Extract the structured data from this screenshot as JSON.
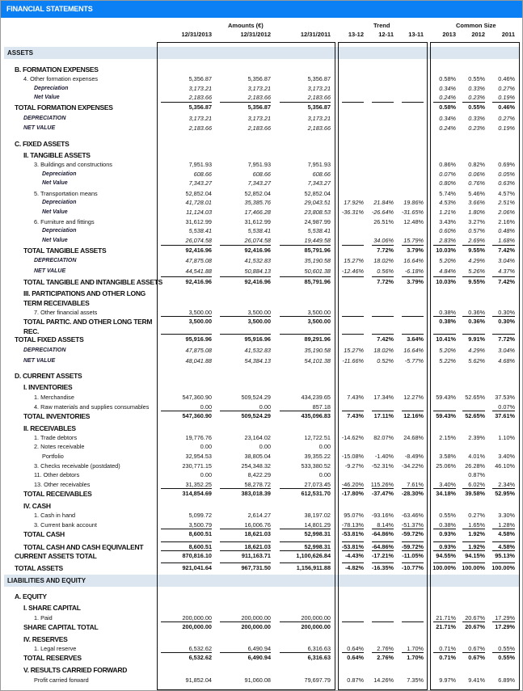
{
  "title": "FINANCIAL STATEMENTS",
  "headers": {
    "amounts": "Amounts (€)",
    "trend": "Trend",
    "common_size": "Common Size",
    "amount_cols": [
      "12/31/2013",
      "12/31/2012",
      "12/31/2011"
    ],
    "trend_cols": [
      "13-12",
      "12-11",
      "13-11"
    ],
    "cs_cols": [
      "2013",
      "2012",
      "2011"
    ]
  },
  "rows": [
    {
      "kind": "band",
      "label": "ASSETS"
    },
    {
      "kind": "section",
      "level": 1,
      "label": "B. FORMATION EXPENSES"
    },
    {
      "kind": "item",
      "level": 2,
      "label": "4. Other formation expenses",
      "a": [
        "5,356.87",
        "5,356.87",
        "5,356.87"
      ],
      "t": [
        "",
        "",
        ""
      ],
      "c": [
        "0.58%",
        "0.55%",
        "0.46%"
      ]
    },
    {
      "kind": "sub",
      "level": 3,
      "label": "Depreciation",
      "a": [
        "3,173.21",
        "3,173.21",
        "3,173.21"
      ],
      "t": [
        "",
        "",
        ""
      ],
      "c": [
        "0.34%",
        "0.33%",
        "0.27%"
      ]
    },
    {
      "kind": "sub",
      "level": 3,
      "label": "Net Value",
      "a": [
        "2,183.66",
        "2,183.66",
        "2,183.66"
      ],
      "t": [
        "",
        "",
        ""
      ],
      "c": [
        "0.24%",
        "0.23%",
        "0.19%"
      ]
    },
    {
      "kind": "total",
      "level": 1,
      "rule": true,
      "label": "TOTAL FORMATION EXPENSES",
      "a": [
        "5,356.87",
        "5,356.87",
        "5,356.87"
      ],
      "t": [
        "",
        "",
        ""
      ],
      "c": [
        "0.58%",
        "0.55%",
        "0.46%"
      ]
    },
    {
      "kind": "totsub",
      "level": 2,
      "label": "DEPRECIATION",
      "a": [
        "3,173.21",
        "3,173.21",
        "3,173.21"
      ],
      "t": [
        "",
        "",
        ""
      ],
      "c": [
        "0.34%",
        "0.33%",
        "0.27%"
      ]
    },
    {
      "kind": "totsub",
      "level": 2,
      "label": "NET VALUE",
      "a": [
        "2,183.66",
        "2,183.66",
        "2,183.66"
      ],
      "t": [
        "",
        "",
        ""
      ],
      "c": [
        "0.24%",
        "0.23%",
        "0.19%"
      ]
    },
    {
      "kind": "section",
      "level": 1,
      "label": "C. FIXED ASSETS"
    },
    {
      "kind": "section",
      "level": 2,
      "label": "II. TANGIBLE ASSETS"
    },
    {
      "kind": "item",
      "level": 3,
      "label": "3. Buildings and constructions",
      "a": [
        "7,951.93",
        "7,951.93",
        "7,951.93"
      ],
      "t": [
        "",
        "",
        ""
      ],
      "c": [
        "0.86%",
        "0.82%",
        "0.69%"
      ]
    },
    {
      "kind": "sub",
      "level": 4,
      "label": "Depreciation",
      "a": [
        "608.66",
        "608.66",
        "608.66"
      ],
      "t": [
        "",
        "",
        ""
      ],
      "c": [
        "0.07%",
        "0.06%",
        "0.05%"
      ]
    },
    {
      "kind": "sub",
      "level": 4,
      "label": "Net Value",
      "a": [
        "7,343.27",
        "7,343.27",
        "7,343.27"
      ],
      "t": [
        "",
        "",
        ""
      ],
      "c": [
        "0.80%",
        "0.76%",
        "0.63%"
      ]
    },
    {
      "kind": "item",
      "level": 3,
      "label": "5. Transportation means",
      "a": [
        "52,852.04",
        "52,852.04",
        "52,852.04"
      ],
      "t": [
        "",
        "",
        ""
      ],
      "c": [
        "5.74%",
        "5.46%",
        "4.57%"
      ]
    },
    {
      "kind": "sub",
      "level": 4,
      "label": "Depreciation",
      "a": [
        "41,728.01",
        "35,385.76",
        "29,043.51"
      ],
      "t": [
        "17.92%",
        "21.84%",
        "19.86%"
      ],
      "c": [
        "4.53%",
        "3.66%",
        "2.51%"
      ]
    },
    {
      "kind": "sub",
      "level": 4,
      "label": "Net Value",
      "a": [
        "11,124.03",
        "17,466.28",
        "23,808.53"
      ],
      "t": [
        "-36.31%",
        "-26.64%",
        "-31.65%"
      ],
      "c": [
        "1.21%",
        "1.80%",
        "2.06%"
      ]
    },
    {
      "kind": "item",
      "level": 3,
      "label": "6. Furniture and fittings",
      "a": [
        "31,612.99",
        "31,612.99",
        "24,987.99"
      ],
      "t": [
        "",
        "26.51%",
        "12.48%"
      ],
      "c": [
        "3.43%",
        "3.27%",
        "2.16%"
      ]
    },
    {
      "kind": "sub",
      "level": 4,
      "label": "Depreciation",
      "a": [
        "5,538.41",
        "5,538.41",
        "5,538.41"
      ],
      "t": [
        "",
        "",
        ""
      ],
      "c": [
        "0.60%",
        "0.57%",
        "0.48%"
      ]
    },
    {
      "kind": "sub",
      "level": 4,
      "label": "Net Value",
      "a": [
        "26,074.58",
        "26,074.58",
        "19,449.58"
      ],
      "t": [
        "",
        "34.06%",
        "15.79%"
      ],
      "c": [
        "2.83%",
        "2.69%",
        "1.68%"
      ]
    },
    {
      "kind": "total",
      "level": 2,
      "rule": true,
      "label": "TOTAL TANGIBLE ASSETS",
      "a": [
        "92,416.96",
        "92,416.96",
        "85,791.96"
      ],
      "t": [
        "",
        "7.72%",
        "3.79%"
      ],
      "c": [
        "10.03%",
        "9.55%",
        "7.42%"
      ]
    },
    {
      "kind": "totsub",
      "level": 3,
      "label": "DEPRECIATION",
      "a": [
        "47,875.08",
        "41,532.83",
        "35,190.58"
      ],
      "t": [
        "15.27%",
        "18.02%",
        "16.64%"
      ],
      "c": [
        "5.20%",
        "4.29%",
        "3.04%"
      ]
    },
    {
      "kind": "totsub",
      "level": 3,
      "label": "NET VALUE",
      "a": [
        "44,541.88",
        "50,884.13",
        "50,601.38"
      ],
      "t": [
        "-12.46%",
        "0.56%",
        "-6.18%"
      ],
      "c": [
        "4.84%",
        "5.26%",
        "4.37%"
      ]
    },
    {
      "kind": "total",
      "level": 2,
      "rule": true,
      "label": "TOTAL TANGIBLE AND INTANGIBLE ASSETS",
      "a": [
        "92,416.96",
        "92,416.96",
        "85,791.96"
      ],
      "t": [
        "",
        "7.72%",
        "3.79%"
      ],
      "c": [
        "10.03%",
        "9.55%",
        "7.42%"
      ]
    },
    {
      "kind": "section",
      "level": 2,
      "label": "III. PARTICIPATIONS AND OTHER LONG",
      "label2": "TERM RECEIVABLES"
    },
    {
      "kind": "item",
      "level": 3,
      "label": "7. Other financial assets",
      "a": [
        "3,500.00",
        "3,500.00",
        "3,500.00"
      ],
      "t": [
        "",
        "",
        ""
      ],
      "c": [
        "0.38%",
        "0.36%",
        "0.30%"
      ]
    },
    {
      "kind": "total",
      "level": 2,
      "rule": true,
      "label": "TOTAL PARTIC. AND OTHER LONG TERM",
      "label2": "REC.",
      "a": [
        "3,500.00",
        "3,500.00",
        "3,500.00"
      ],
      "t": [
        "",
        "",
        ""
      ],
      "c": [
        "0.38%",
        "0.36%",
        "0.30%"
      ]
    },
    {
      "kind": "total",
      "level": 1,
      "rule": true,
      "label": "TOTAL FIXED ASSETS",
      "a": [
        "95,916.96",
        "95,916.96",
        "89,291.96"
      ],
      "t": [
        "",
        "7.42%",
        "3.64%"
      ],
      "c": [
        "10.41%",
        "9.91%",
        "7.72%"
      ]
    },
    {
      "kind": "totsub",
      "level": 2,
      "label": "DEPRECIATION",
      "a": [
        "47,875.08",
        "41,532.83",
        "35,190.58"
      ],
      "t": [
        "15.27%",
        "18.02%",
        "16.64%"
      ],
      "c": [
        "5.20%",
        "4.29%",
        "3.04%"
      ]
    },
    {
      "kind": "totsub",
      "level": 2,
      "label": "NET VALUE",
      "a": [
        "48,041.88",
        "54,384.13",
        "54,101.38"
      ],
      "t": [
        "-11.66%",
        "0.52%",
        "-5.77%"
      ],
      "c": [
        "5.22%",
        "5.62%",
        "4.68%"
      ]
    },
    {
      "kind": "section",
      "level": 1,
      "label": "D. CURRENT ASSETS"
    },
    {
      "kind": "section",
      "level": 2,
      "label": "I. INVENTORIES"
    },
    {
      "kind": "item",
      "level": 3,
      "label": "1. Merchandise",
      "a": [
        "547,360.90",
        "509,524.29",
        "434,239.65"
      ],
      "t": [
        "7.43%",
        "17.34%",
        "12.27%"
      ],
      "c": [
        "59.43%",
        "52.65%",
        "37.53%"
      ]
    },
    {
      "kind": "item",
      "level": 3,
      "label": "4. Raw materials and supplies consumables",
      "a": [
        "0.00",
        "0.00",
        "857.18"
      ],
      "t": [
        "",
        "",
        ""
      ],
      "c": [
        "",
        "",
        "0.07%"
      ]
    },
    {
      "kind": "total",
      "level": 2,
      "rule": true,
      "label": "TOTAL INVENTORIES",
      "a": [
        "547,360.90",
        "509,524.29",
        "435,096.83"
      ],
      "t": [
        "7.43%",
        "17.11%",
        "12.16%"
      ],
      "c": [
        "59.43%",
        "52.65%",
        "37.61%"
      ]
    },
    {
      "kind": "section",
      "level": 2,
      "label": "II. RECEIVABLES"
    },
    {
      "kind": "item",
      "level": 3,
      "label": "1. Trade debtors",
      "a": [
        "19,776.76",
        "23,164.02",
        "12,722.51"
      ],
      "t": [
        "-14.62%",
        "82.07%",
        "24.68%"
      ],
      "c": [
        "2.15%",
        "2.39%",
        "1.10%"
      ]
    },
    {
      "kind": "item",
      "level": 3,
      "label": "2. Notes receivable",
      "a": [
        "0.00",
        "0.00",
        "0.00"
      ],
      "t": [
        "",
        "",
        ""
      ],
      "c": [
        "",
        "",
        ""
      ]
    },
    {
      "kind": "item",
      "level": 4,
      "label": "Portfolio",
      "a": [
        "32,954.53",
        "38,805.04",
        "39,355.22"
      ],
      "t": [
        "-15.08%",
        "-1.40%",
        "-8.49%"
      ],
      "c": [
        "3.58%",
        "4.01%",
        "3.40%"
      ]
    },
    {
      "kind": "item",
      "level": 3,
      "label": "3. Checks receivable (postdated)",
      "a": [
        "230,771.15",
        "254,348.32",
        "533,380.52"
      ],
      "t": [
        "-9.27%",
        "-52.31%",
        "-34.22%"
      ],
      "c": [
        "25.06%",
        "26.28%",
        "46.10%"
      ]
    },
    {
      "kind": "item",
      "level": 3,
      "label": "11. Other debtors",
      "a": [
        "0.00",
        "8,422.29",
        "0.00"
      ],
      "t": [
        "",
        "",
        ""
      ],
      "c": [
        "",
        "0.87%",
        ""
      ]
    },
    {
      "kind": "item",
      "level": 3,
      "label": "13. Other receivables",
      "a": [
        "31,352.25",
        "58,278.72",
        "27,073.45"
      ],
      "t": [
        "-46.20%",
        "115.26%",
        "7.61%"
      ],
      "c": [
        "3.40%",
        "6.02%",
        "2.34%"
      ]
    },
    {
      "kind": "total",
      "level": 2,
      "rule": true,
      "label": "TOTAL RECEIVABLES",
      "a": [
        "314,854.69",
        "383,018.39",
        "612,531.70"
      ],
      "t": [
        "-17.80%",
        "-37.47%",
        "-28.30%"
      ],
      "c": [
        "34.18%",
        "39.58%",
        "52.95%"
      ]
    },
    {
      "kind": "section",
      "level": 2,
      "label": "IV. CASH"
    },
    {
      "kind": "item",
      "level": 3,
      "label": "1. Cash in hand",
      "a": [
        "5,099.72",
        "2,614.27",
        "38,197.02"
      ],
      "t": [
        "95.07%",
        "-93.16%",
        "-63.46%"
      ],
      "c": [
        "0.55%",
        "0.27%",
        "3.30%"
      ]
    },
    {
      "kind": "item",
      "level": 3,
      "label": "3. Current bank account",
      "a": [
        "3,500.79",
        "16,006.76",
        "14,801.29"
      ],
      "t": [
        "-78.13%",
        "8.14%",
        "-51.37%"
      ],
      "c": [
        "0.38%",
        "1.65%",
        "1.28%"
      ]
    },
    {
      "kind": "total",
      "level": 2,
      "rule": true,
      "label": "TOTAL CASH",
      "a": [
        "8,600.51",
        "18,621.03",
        "52,998.31"
      ],
      "t": [
        "-53.81%",
        "-64.86%",
        "-59.72%"
      ],
      "c": [
        "0.93%",
        "1.92%",
        "4.58%"
      ]
    },
    {
      "kind": "total",
      "level": 2,
      "rule": true,
      "label": "TOTAL CASH AND CASH EQUIVALENT",
      "a": [
        "8,600.51",
        "18,621.03",
        "52,998.31"
      ],
      "t": [
        "-53.81%",
        "-64.86%",
        "-59.72%"
      ],
      "c": [
        "0.93%",
        "1.92%",
        "4.58%"
      ]
    },
    {
      "kind": "total",
      "level": 1,
      "rule": true,
      "label": "CURRENT ASSETS TOTAL",
      "a": [
        "870,816.10",
        "911,163.71",
        "1,100,626.84"
      ],
      "t": [
        "-4.43%",
        "-17.21%",
        "-11.05%"
      ],
      "c": [
        "94.55%",
        "94.15%",
        "95.13%"
      ]
    },
    {
      "kind": "total",
      "level": 1,
      "rule": true,
      "label": "TOTAL ASSETS",
      "a": [
        "921,041.64",
        "967,731.50",
        "1,156,911.88"
      ],
      "t": [
        "-4.82%",
        "-16.35%",
        "-10.77%"
      ],
      "c": [
        "100.00%",
        "100.00%",
        "100.00%"
      ]
    },
    {
      "kind": "band",
      "label": "LIABILITIES AND EQUITY"
    },
    {
      "kind": "section",
      "level": 1,
      "label": "A. EQUITY"
    },
    {
      "kind": "section",
      "level": 2,
      "label": "I. SHARE CAPITAL"
    },
    {
      "kind": "item",
      "level": 3,
      "label": "1. Paid",
      "a": [
        "200,000.00",
        "200,000.00",
        "200,000.00"
      ],
      "t": [
        "",
        "",
        ""
      ],
      "c": [
        "21.71%",
        "20.67%",
        "17.29%"
      ]
    },
    {
      "kind": "total",
      "level": 2,
      "rule": true,
      "label": "SHARE CAPITAL TOTAL",
      "a": [
        "200,000.00",
        "200,000.00",
        "200,000.00"
      ],
      "t": [
        "",
        "",
        ""
      ],
      "c": [
        "21.71%",
        "20.67%",
        "17.29%"
      ]
    },
    {
      "kind": "section",
      "level": 2,
      "label": "IV. RESERVES"
    },
    {
      "kind": "item",
      "level": 3,
      "label": "1. Legal reserve",
      "a": [
        "6,532.62",
        "6,490.94",
        "6,316.63"
      ],
      "t": [
        "0.64%",
        "2.76%",
        "1.70%"
      ],
      "c": [
        "0.71%",
        "0.67%",
        "0.55%"
      ]
    },
    {
      "kind": "total",
      "level": 2,
      "rule": true,
      "label": "TOTAL RESERVES",
      "a": [
        "6,532.62",
        "6,490.94",
        "6,316.63"
      ],
      "t": [
        "0.64%",
        "2.76%",
        "1.70%"
      ],
      "c": [
        "0.71%",
        "0.67%",
        "0.55%"
      ]
    },
    {
      "kind": "section",
      "level": 2,
      "label": "V. RESULTS CARRIED FORWARD"
    },
    {
      "kind": "item",
      "level": 3,
      "label": "Profit carried forward",
      "a": [
        "91,852.04",
        "91,060.08",
        "79,697.79"
      ],
      "t": [
        "0.87%",
        "14.26%",
        "7.35%"
      ],
      "c": [
        "9.97%",
        "9.41%",
        "6.89%"
      ]
    }
  ]
}
